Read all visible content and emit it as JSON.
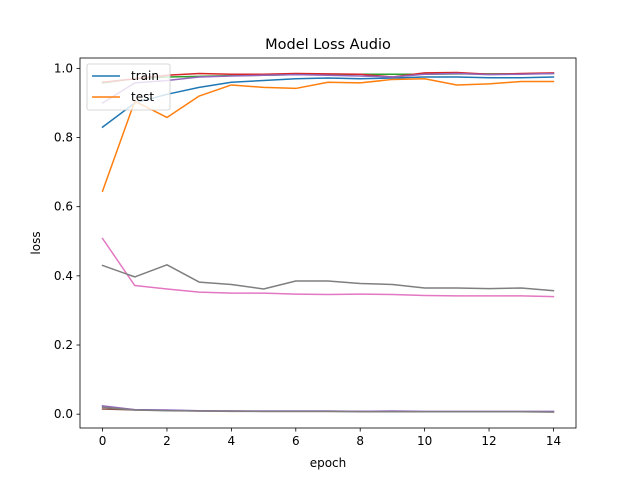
{
  "chart_data": {
    "type": "line",
    "title": "Model Loss Audio",
    "xlabel": "epoch",
    "ylabel": "loss",
    "xlim": [
      -0.7,
      14.7
    ],
    "ylim": [
      -0.04,
      1.03
    ],
    "xticks": [
      0,
      2,
      4,
      6,
      8,
      10,
      12,
      14
    ],
    "yticks": [
      0.0,
      0.2,
      0.4,
      0.6,
      0.8,
      1.0
    ],
    "ytick_labels": [
      "0.0",
      "0.2",
      "0.4",
      "0.6",
      "0.8",
      "1.0"
    ],
    "grid": false,
    "legend_position": "top-left",
    "x": [
      0,
      1,
      2,
      3,
      4,
      5,
      6,
      7,
      8,
      9,
      10,
      11,
      12,
      13,
      14
    ],
    "series": [
      {
        "name": "train",
        "color": "#1f77b4",
        "values": [
          0.83,
          0.9,
          0.925,
          0.945,
          0.96,
          0.965,
          0.97,
          0.972,
          0.97,
          0.972,
          0.975,
          0.975,
          0.973,
          0.973,
          0.975
        ]
      },
      {
        "name": "test",
        "color": "#ff7f0e",
        "values": [
          0.645,
          0.905,
          0.858,
          0.92,
          0.952,
          0.945,
          0.942,
          0.96,
          0.958,
          0.968,
          0.97,
          0.952,
          0.955,
          0.962,
          0.962
        ]
      },
      {
        "color": "#2ca02c",
        "values": [
          0.958,
          0.97,
          0.975,
          0.977,
          0.979,
          0.98,
          0.982,
          0.982,
          0.983,
          0.983,
          0.983,
          0.984,
          0.984,
          0.984,
          0.985
        ]
      },
      {
        "color": "#d62728",
        "values": [
          0.96,
          0.97,
          0.98,
          0.985,
          0.983,
          0.983,
          0.985,
          0.984,
          0.983,
          0.975,
          0.987,
          0.988,
          0.983,
          0.985,
          0.987
        ]
      },
      {
        "color": "#9467bd",
        "values": [
          0.9,
          0.958,
          0.965,
          0.975,
          0.978,
          0.98,
          0.982,
          0.98,
          0.978,
          0.975,
          0.983,
          0.985,
          0.982,
          0.983,
          0.985
        ]
      },
      {
        "color": "#8c564b",
        "values": [
          0.015,
          0.012,
          0.011,
          0.009,
          0.009,
          0.008,
          0.008,
          0.008,
          0.008,
          0.008,
          0.007,
          0.007,
          0.007,
          0.007,
          0.007
        ]
      },
      {
        "color": "#e377c2",
        "values": [
          0.508,
          0.372,
          0.362,
          0.353,
          0.35,
          0.35,
          0.347,
          0.346,
          0.347,
          0.346,
          0.343,
          0.342,
          0.342,
          0.342,
          0.34
        ]
      },
      {
        "color": "#7f7f7f",
        "values": [
          0.43,
          0.397,
          0.432,
          0.382,
          0.375,
          0.362,
          0.385,
          0.385,
          0.378,
          0.375,
          0.365,
          0.365,
          0.363,
          0.365,
          0.357
        ]
      },
      {
        "color": "#9467bd",
        "values": [
          0.024,
          0.013,
          0.012,
          0.01,
          0.009,
          0.009,
          0.009,
          0.009,
          0.008,
          0.009,
          0.008,
          0.008,
          0.008,
          0.008,
          0.008
        ]
      },
      {
        "color": "#7f7f7f",
        "values": [
          0.02,
          0.012,
          0.01,
          0.009,
          0.008,
          0.008,
          0.008,
          0.008,
          0.007,
          0.007,
          0.007,
          0.007,
          0.007,
          0.007,
          0.006
        ]
      }
    ]
  }
}
